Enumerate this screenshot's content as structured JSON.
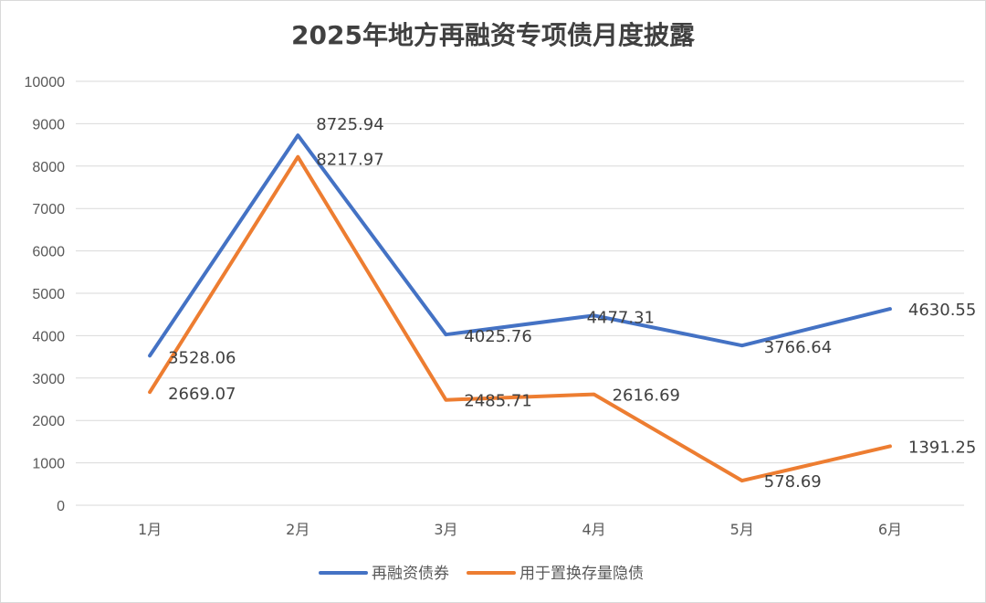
{
  "chart_data": {
    "type": "line",
    "title": "2025年地方再融资专项债月度披露",
    "categories": [
      "1月",
      "2月",
      "3月",
      "4月",
      "5月",
      "6月"
    ],
    "ylim": [
      0,
      10000
    ],
    "yticks": [
      0,
      1000,
      2000,
      3000,
      4000,
      5000,
      6000,
      7000,
      8000,
      9000,
      10000
    ],
    "grid": true,
    "legend_position": "bottom",
    "series": [
      {
        "name": "再融资债券",
        "color": "#4472c4",
        "values": [
          3528.06,
          8725.94,
          4025.76,
          4477.31,
          3766.64,
          4630.55
        ],
        "labels": [
          "3528.06",
          "8725.94",
          "4025.76",
          "4477.31",
          "3766.64",
          "4630.55"
        ]
      },
      {
        "name": "用于置换存量隐债",
        "color": "#ed7d31",
        "values": [
          2669.07,
          8217.97,
          2485.71,
          2616.69,
          578.69,
          1391.25
        ],
        "labels": [
          "2669.07",
          "8217.97",
          "2485.71",
          "2616.69",
          "578.69",
          "1391.25"
        ]
      }
    ]
  }
}
